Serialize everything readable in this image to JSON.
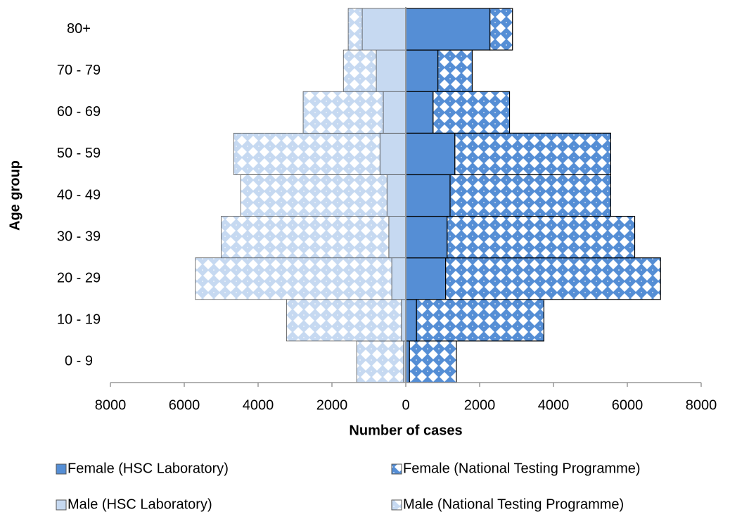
{
  "chart_data": {
    "type": "pyramid",
    "x_label": "Number of cases",
    "y_label": "Age group",
    "categories": [
      "0 - 9",
      "10 - 19",
      "20 - 29",
      "30 - 39",
      "40 - 49",
      "50 - 59",
      "60 - 69",
      "70 - 79",
      "80+"
    ],
    "xlim": [
      -8000,
      8000
    ],
    "xticks": [
      {
        "value": -8000,
        "label": "8000"
      },
      {
        "value": -6000,
        "label": "6000"
      },
      {
        "value": -4000,
        "label": "4000"
      },
      {
        "value": -2000,
        "label": "2000"
      },
      0,
      2000,
      4000,
      6000,
      8000
    ],
    "series": [
      {
        "name": "Female (HSC Laboratory)",
        "color": "#558ed5",
        "pattern": "solid",
        "values": [
          100,
          290,
          1080,
          1120,
          1200,
          1330,
          740,
          870,
          2280
        ]
      },
      {
        "name": "Female (National Testing Programme)",
        "color": "#558ed5",
        "pattern": "diamond",
        "values": [
          1270,
          3450,
          5820,
          5080,
          4350,
          4220,
          2070,
          930,
          610
        ]
      },
      {
        "name": "Male (HSC Laboratory)",
        "color": "#c6d9f1",
        "pattern": "solid",
        "values": [
          -60,
          -120,
          -380,
          -460,
          -510,
          -700,
          -610,
          -800,
          -1180
        ]
      },
      {
        "name": "Male (National Testing Programme)",
        "color": "#c6d9f1",
        "pattern": "diamond",
        "values": [
          -1270,
          -3110,
          -5320,
          -4540,
          -3960,
          -3960,
          -2170,
          -890,
          -380
        ]
      }
    ]
  }
}
